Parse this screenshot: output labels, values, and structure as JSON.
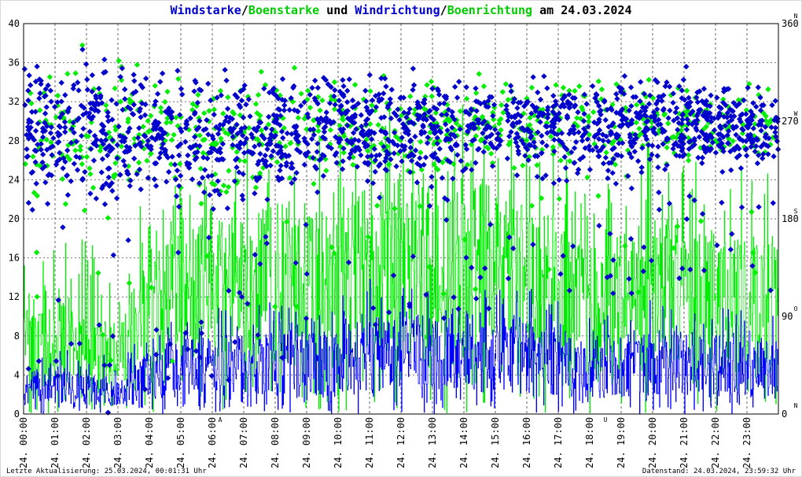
{
  "title": {
    "part1": "Windstarke",
    "sep1": "/",
    "part2": "Boenstarke",
    "part3": " und ",
    "part4": "Windrichtung",
    "sep2": "/",
    "part5": "Boenrichtung",
    "part6": " am 24.03.2024"
  },
  "footer": {
    "left": "Letzte Aktualisierung: 25.03.2024, 00:01:31 Uhr",
    "right": "Datenstand: 24.03.2024, 23:59:32 Uhr"
  },
  "colors": {
    "wind": "#0000ff",
    "gust": "#00ee00",
    "title_blue": "#0000cc",
    "title_green": "#00cc00",
    "marker_red": "#ff0000",
    "grid": "#000000"
  },
  "chart_data": {
    "type": "line",
    "title": "Windstarke/Boenstarke und Windrichtung/Boenrichtung am 24.03.2024",
    "left_axis": {
      "ylim": [
        0,
        40
      ],
      "ticks": [
        "0",
        "4",
        "8",
        "12",
        "16",
        "20",
        "24",
        "28",
        "32",
        "36",
        "40"
      ]
    },
    "right_axis": {
      "ylim": [
        0,
        360
      ],
      "ticks": [
        "0",
        "90",
        "180",
        "270",
        "360"
      ],
      "compass": [
        "N",
        "O",
        "S",
        "W",
        "N"
      ]
    },
    "x_axis": {
      "range_hours": [
        0,
        24
      ],
      "ticks": [
        "24. 00:00",
        "24. 01:00",
        "24. 02:00",
        "24. 03:00",
        "24. 04:00",
        "24. 05:00",
        "24. 06:00",
        "24. 07:00",
        "24. 08:00",
        "24. 09:00",
        "24. 10:00",
        "24. 11:00",
        "24. 12:00",
        "24. 13:00",
        "24. 14:00",
        "24. 15:00",
        "24. 16:00",
        "24. 17:00",
        "24. 18:00",
        "24. 19:00",
        "24. 20:00",
        "24. 21:00",
        "24. 22:00",
        "24. 23:00"
      ]
    },
    "markers": [
      {
        "label": "A",
        "hour": 6.25
      },
      {
        "label": "U",
        "hour": 18.5
      }
    ],
    "grid": true,
    "series": [
      {
        "name": "Windstarke",
        "kind": "line",
        "color": "#0000ff",
        "profile_hours": [
          0,
          1,
          2,
          3,
          4,
          5,
          6,
          7,
          8,
          9,
          10,
          11,
          12,
          13,
          14,
          15,
          16,
          17,
          18,
          19,
          20,
          21,
          22,
          23,
          24
        ],
        "profile_mean": [
          2.5,
          3,
          2.5,
          2,
          4,
          5,
          5,
          5,
          5.5,
          5,
          5.5,
          6,
          6.5,
          6,
          7,
          6,
          6,
          5,
          4.5,
          5,
          5.5,
          5,
          5,
          5,
          4.5
        ],
        "profile_max": [
          6,
          7,
          7,
          6,
          9,
          10,
          11,
          11,
          12,
          11,
          12,
          14,
          14,
          13,
          14,
          13,
          13,
          12,
          10,
          11,
          12,
          11,
          11,
          11,
          10
        ]
      },
      {
        "name": "Boenstarke",
        "kind": "line",
        "color": "#00ee00",
        "profile_hours": [
          0,
          1,
          2,
          3,
          4,
          5,
          6,
          7,
          8,
          9,
          10,
          11,
          12,
          13,
          14,
          15,
          16,
          17,
          18,
          19,
          20,
          21,
          22,
          23,
          24
        ],
        "profile_mean": [
          7,
          8,
          6,
          6,
          11,
          13,
          13,
          13,
          14,
          14,
          14,
          15,
          16,
          15,
          17,
          15,
          15,
          13,
          11,
          12,
          13,
          12,
          12,
          12,
          11
        ],
        "profile_max": [
          16,
          18,
          18,
          16,
          24,
          24,
          26,
          28,
          30,
          28,
          30,
          32,
          32,
          30,
          32,
          30,
          30,
          28,
          24,
          26,
          28,
          26,
          26,
          26,
          24
        ]
      },
      {
        "name": "Windrichtung",
        "kind": "scatter",
        "color": "#0000cc",
        "unit": "deg",
        "profile_hours": [
          0,
          2,
          4,
          6,
          8,
          10,
          12,
          14,
          16,
          18,
          20,
          22,
          24
        ],
        "center_deg": [
          260,
          255,
          260,
          250,
          255,
          265,
          260,
          265,
          262,
          262,
          265,
          268,
          262
        ],
        "spread_deg": [
          90,
          95,
          85,
          80,
          75,
          70,
          70,
          60,
          60,
          65,
          60,
          55,
          60
        ]
      },
      {
        "name": "Boenrichtung",
        "kind": "scatter",
        "color": "#00ee00",
        "unit": "deg",
        "profile_hours": [
          0,
          2,
          4,
          6,
          8,
          10,
          12,
          14,
          16,
          18,
          20,
          22,
          24
        ],
        "center_deg": [
          262,
          258,
          262,
          252,
          258,
          266,
          262,
          268,
          264,
          264,
          266,
          270,
          264
        ],
        "spread_deg": [
          80,
          85,
          80,
          75,
          70,
          65,
          65,
          55,
          55,
          60,
          55,
          50,
          55
        ]
      }
    ]
  }
}
